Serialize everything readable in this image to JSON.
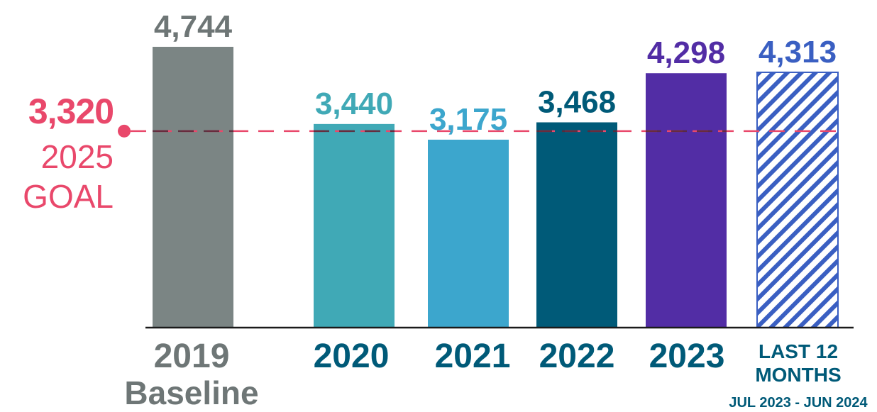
{
  "chart_data": {
    "type": "bar",
    "categories": [
      "2019",
      "2020",
      "2021",
      "2022",
      "2023",
      "LAST 12"
    ],
    "category_sublabels": [
      "Baseline",
      "",
      "",
      "",
      "",
      "MONTHS"
    ],
    "category_note": [
      "",
      "",
      "",
      "",
      "",
      "JUL 2023 - JUN 2024"
    ],
    "values": [
      4744,
      3440,
      3175,
      3468,
      4298,
      4313
    ],
    "value_labels": [
      "4,744",
      "3,440",
      "3,175",
      "3,468",
      "4,298",
      "4,313"
    ],
    "bar_colors": [
      "#7b8584",
      "#40a9b6",
      "#3ca6cd",
      "#005a78",
      "#522da5",
      "#3a5fc2"
    ],
    "label_colors": [
      "#6e7676",
      "#40a9b6",
      "#3ca6cd",
      "#005a78",
      "#522da5",
      "#3a5fc2"
    ],
    "category_label_colors": [
      "#6e7676",
      "#005a78",
      "#005a78",
      "#005a78",
      "#005a78",
      "#005a78"
    ],
    "hatched": [
      false,
      false,
      false,
      false,
      false,
      true
    ],
    "ylim": [
      0,
      4744
    ],
    "grid": false,
    "title": "",
    "xlabel": "",
    "ylabel": "",
    "goal": {
      "value": 3320,
      "value_label": "3,320",
      "line1": "2025",
      "line2": "GOAL",
      "color": "#e9486b",
      "line_color": "#e9486b",
      "dash_color": "#5b2a3a"
    },
    "axis_color": "#1a1a1a"
  }
}
